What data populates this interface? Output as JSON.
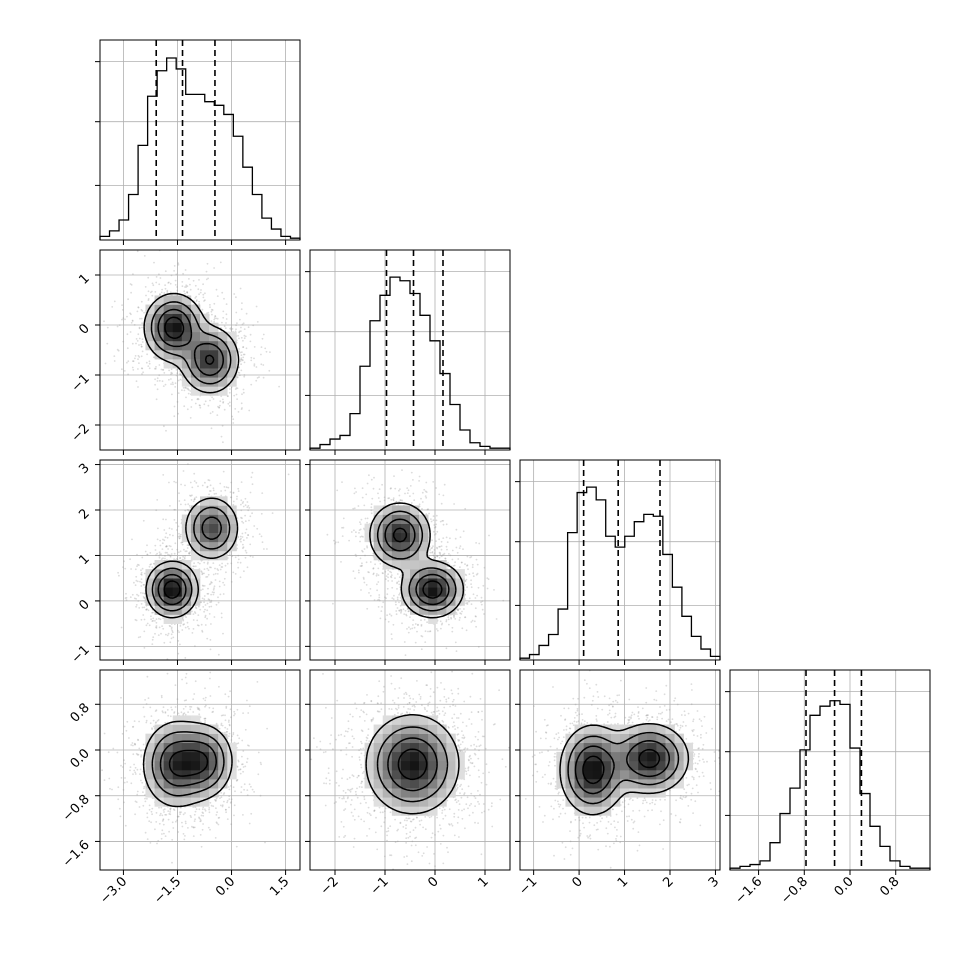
{
  "chart_data": {
    "type": "corner",
    "grid": true,
    "x_ticks": [
      {
        "values": [
          -3.0,
          -1.5,
          0.0,
          1.5
        ],
        "labels": [
          "−3.0",
          "−1.5",
          "0.0",
          "1.5"
        ],
        "range": [
          -3.65,
          1.9
        ]
      },
      {
        "values": [
          -2,
          -1,
          0,
          1
        ],
        "labels": [
          "−2",
          "−1",
          "0",
          "1"
        ],
        "range": [
          -2.5,
          1.5
        ]
      },
      {
        "values": [
          -1,
          0,
          1,
          2,
          3
        ],
        "labels": [
          "−1",
          "0",
          "1",
          "2",
          "3"
        ],
        "range": [
          -1.3,
          3.1
        ]
      },
      {
        "values": [
          -1.6,
          -0.8,
          0.0,
          0.8
        ],
        "labels": [
          "−1.6",
          "−0.8",
          "0.0",
          "0.8"
        ],
        "range": [
          -2.1,
          1.4
        ]
      }
    ],
    "y_ticks": [
      {
        "values": [],
        "labels": [],
        "range": [
          0,
          1
        ]
      },
      {
        "values": [
          1,
          0,
          -1,
          -2
        ],
        "labels": [
          "1",
          "0",
          "−1",
          "−2"
        ],
        "range": [
          -2.5,
          1.5
        ]
      },
      {
        "values": [
          3,
          2,
          1,
          0,
          -1
        ],
        "labels": [
          "3",
          "2",
          "1",
          "0",
          "−1"
        ],
        "range": [
          -1.3,
          3.1
        ]
      },
      {
        "values": [
          0.8,
          0.0,
          -0.8,
          -1.6
        ],
        "labels": [
          "0.8",
          "0.0",
          "−0.8",
          "−1.6"
        ],
        "range": [
          -2.1,
          1.4
        ]
      }
    ],
    "histograms": [
      {
        "counts": [
          0.02,
          0.05,
          0.11,
          0.25,
          0.52,
          0.79,
          0.93,
          1.0,
          0.94,
          0.8,
          0.8,
          0.76,
          0.74,
          0.69,
          0.57,
          0.4,
          0.25,
          0.12,
          0.06,
          0.02,
          0.01
        ],
        "quantiles": [
          -2.09,
          -1.36,
          -0.46
        ]
      },
      {
        "counts": [
          0.01,
          0.03,
          0.06,
          0.08,
          0.2,
          0.46,
          0.71,
          0.85,
          0.95,
          0.93,
          0.86,
          0.74,
          0.6,
          0.42,
          0.25,
          0.11,
          0.04,
          0.02,
          0.01,
          0.01
        ],
        "quantiles": [
          -0.97,
          -0.43,
          0.16
        ]
      },
      {
        "counts": [
          0.01,
          0.03,
          0.08,
          0.14,
          0.28,
          0.7,
          0.92,
          0.95,
          0.88,
          0.68,
          0.62,
          0.68,
          0.76,
          0.8,
          0.79,
          0.58,
          0.4,
          0.24,
          0.13,
          0.06,
          0.02
        ],
        "quantiles": [
          0.1,
          0.86,
          1.78
        ]
      },
      {
        "counts": [
          0.01,
          0.02,
          0.03,
          0.05,
          0.15,
          0.31,
          0.45,
          0.66,
          0.85,
          0.9,
          0.93,
          0.91,
          0.67,
          0.42,
          0.24,
          0.13,
          0.05,
          0.02,
          0.01,
          0.01
        ],
        "quantiles": [
          -0.77,
          -0.27,
          0.2
        ]
      }
    ],
    "pair_plots": [
      {
        "row": 1,
        "col": 0,
        "blobs": [
          {
            "cx": -1.6,
            "cy": -0.05,
            "sx": 0.4,
            "sy": 0.33,
            "w": 1.0
          },
          {
            "cx": -0.6,
            "cy": -0.7,
            "sx": 0.4,
            "sy": 0.33,
            "w": 0.85
          }
        ],
        "peak": [
          -1.55,
          -0.05
        ]
      },
      {
        "row": 2,
        "col": 0,
        "blobs": [
          {
            "cx": -1.65,
            "cy": 0.25,
            "sx": 0.35,
            "sy": 0.3,
            "w": 1.0
          },
          {
            "cx": -0.55,
            "cy": 1.6,
            "sx": 0.38,
            "sy": 0.35,
            "w": 0.7
          }
        ],
        "peak": [
          -1.65,
          0.22
        ]
      },
      {
        "row": 2,
        "col": 1,
        "blobs": [
          {
            "cx": -0.7,
            "cy": 1.45,
            "sx": 0.3,
            "sy": 0.35,
            "w": 0.9
          },
          {
            "cx": -0.05,
            "cy": 0.25,
            "sx": 0.3,
            "sy": 0.3,
            "w": 1.0
          }
        ],
        "peak": [
          0.0,
          0.2
        ]
      },
      {
        "row": 3,
        "col": 0,
        "blobs": [
          {
            "cx": -1.55,
            "cy": -0.25,
            "sx": 0.45,
            "sy": 0.37,
            "w": 1.0
          },
          {
            "cx": -0.75,
            "cy": -0.2,
            "sx": 0.4,
            "sy": 0.32,
            "w": 0.85
          }
        ],
        "peak": [
          -1.55,
          -0.2
        ]
      },
      {
        "row": 3,
        "col": 1,
        "blobs": [
          {
            "cx": -0.45,
            "cy": -0.25,
            "sx": 0.45,
            "sy": 0.42,
            "w": 1.0
          }
        ],
        "peak": [
          -0.45,
          -0.2
        ]
      },
      {
        "row": 3,
        "col": 2,
        "blobs": [
          {
            "cx": 0.3,
            "cy": -0.35,
            "sx": 0.35,
            "sy": 0.38,
            "w": 1.0
          },
          {
            "cx": 1.55,
            "cy": -0.15,
            "sx": 0.42,
            "sy": 0.3,
            "w": 0.95
          }
        ],
        "peak": [
          1.55,
          -0.15
        ]
      }
    ]
  }
}
